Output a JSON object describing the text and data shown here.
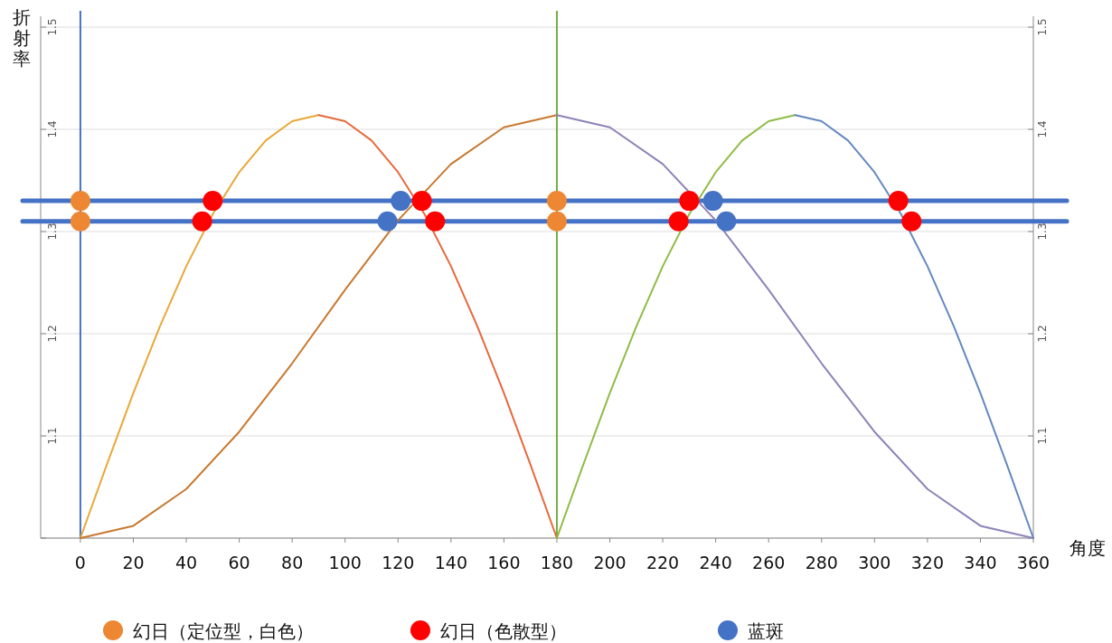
{
  "chart_data": {
    "type": "line",
    "xlabel": "角度",
    "ylabel": "折射率",
    "xlim": [
      -15,
      360
    ],
    "ylim": [
      1.0,
      1.5
    ],
    "y2lim": [
      1.0,
      1.5
    ],
    "xticks": [
      0,
      20,
      40,
      60,
      80,
      100,
      120,
      140,
      160,
      180,
      200,
      220,
      240,
      260,
      280,
      300,
      320,
      340,
      360
    ],
    "yticks": [
      {
        "value": 1.0,
        "label": null
      },
      1.1,
      1.2,
      1.3,
      1.4,
      1.5
    ],
    "y2ticks": [
      {
        "value": 1.0,
        "label": null
      },
      1.1,
      1.2,
      1.3,
      1.4,
      1.5
    ],
    "grid": "y",
    "legend": "bottom",
    "ref_lines": [
      {
        "axis": "y",
        "value": 1.33,
        "color": "#4472c4"
      },
      {
        "axis": "y",
        "value": 1.31,
        "color": "#4472c4"
      },
      {
        "axis": "x",
        "value": 0,
        "color": "#4472c4"
      },
      {
        "axis": "x",
        "value": 180,
        "color": "#70ad47"
      }
    ],
    "series": [
      {
        "type": "line",
        "color": "#e8a838",
        "x": [
          0,
          10,
          20,
          30,
          40,
          50,
          60,
          70,
          80,
          90
        ],
        "values": [
          1.0,
          1.072,
          1.142,
          1.207,
          1.266,
          1.317,
          1.358,
          1.389,
          1.408,
          1.414
        ]
      },
      {
        "type": "line",
        "color": "#e8683c",
        "x": [
          90,
          100,
          110,
          120,
          130,
          140,
          150,
          160,
          170,
          180
        ],
        "values": [
          1.414,
          1.408,
          1.389,
          1.358,
          1.317,
          1.266,
          1.207,
          1.142,
          1.072,
          1.0
        ]
      },
      {
        "type": "line",
        "color": "#c8782e",
        "x": [
          0,
          20,
          40,
          60,
          80,
          100,
          120,
          140,
          160,
          180
        ],
        "values": [
          1.0,
          1.012,
          1.048,
          1.104,
          1.171,
          1.243,
          1.311,
          1.366,
          1.402,
          1.414
        ]
      },
      {
        "type": "line",
        "color": "#8e82b8",
        "x": [
          180,
          200,
          220,
          240,
          260,
          280,
          300,
          320,
          340,
          360
        ],
        "values": [
          1.414,
          1.402,
          1.366,
          1.311,
          1.243,
          1.171,
          1.104,
          1.048,
          1.012,
          1.0
        ]
      },
      {
        "type": "line",
        "color": "#8fbc45",
        "x": [
          180,
          190,
          200,
          210,
          220,
          230,
          240,
          250,
          260,
          270
        ],
        "values": [
          1.0,
          1.072,
          1.142,
          1.207,
          1.266,
          1.317,
          1.358,
          1.389,
          1.408,
          1.414
        ]
      },
      {
        "type": "line",
        "color": "#6488c0",
        "x": [
          270,
          280,
          290,
          300,
          310,
          320,
          330,
          340,
          350,
          360
        ],
        "values": [
          1.414,
          1.408,
          1.389,
          1.358,
          1.317,
          1.266,
          1.207,
          1.142,
          1.072,
          1.0
        ]
      },
      {
        "type": "scatter",
        "marker": "circle",
        "name": "幻日（定位型，白色）",
        "color": "#ed8733",
        "x": [
          0,
          0,
          180,
          180
        ],
        "values": [
          1.33,
          1.31,
          1.33,
          1.31
        ]
      },
      {
        "type": "scatter",
        "marker": "circle",
        "name": "幻日（色散型）",
        "color": "#ff0000",
        "x": [
          50,
          46,
          129,
          134,
          230,
          226,
          309,
          314
        ],
        "values": [
          1.33,
          1.31,
          1.33,
          1.31,
          1.33,
          1.31,
          1.33,
          1.31
        ]
      },
      {
        "type": "scatter",
        "marker": "circle",
        "name": "蓝斑",
        "color": "#4472c4",
        "x": [
          121,
          116,
          239,
          244
        ],
        "values": [
          1.33,
          1.31,
          1.33,
          1.31
        ]
      }
    ]
  }
}
